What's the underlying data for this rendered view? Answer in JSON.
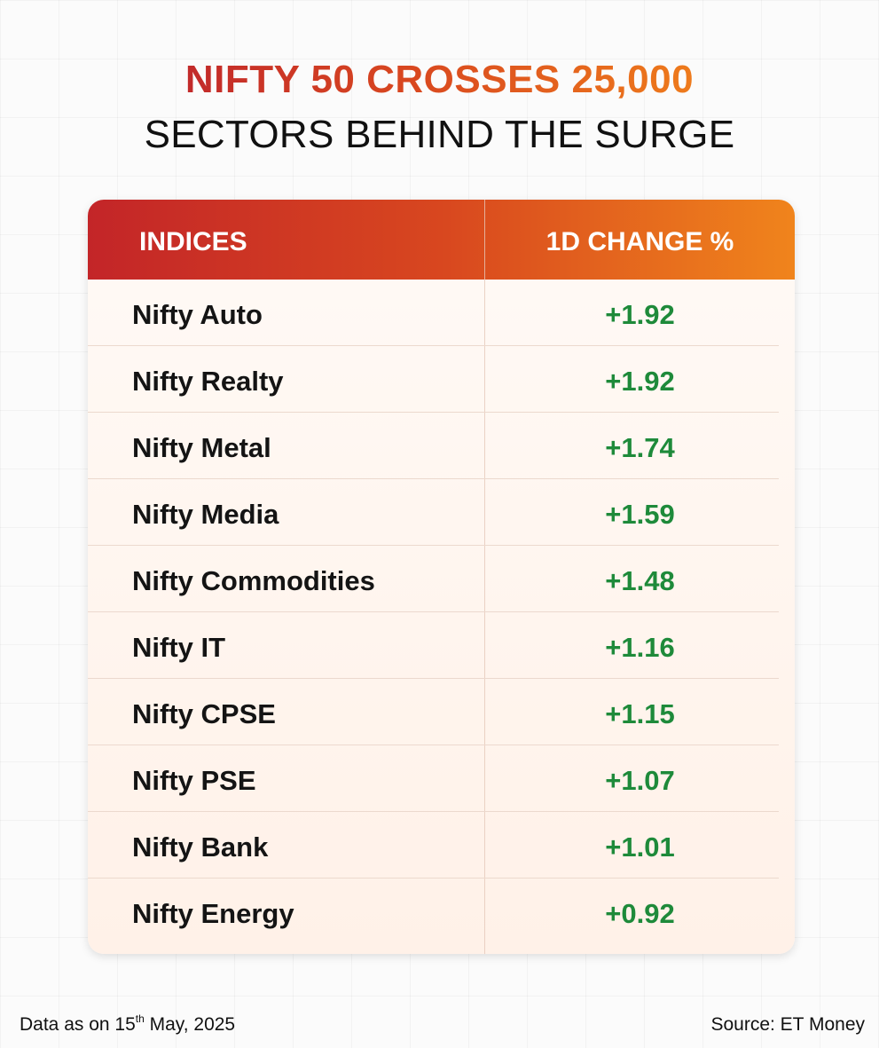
{
  "title": "NIFTY 50 CROSSES 25,000",
  "subtitle": "SECTORS BEHIND THE SURGE",
  "colors": {
    "title_gradient_start": "#c22a2a",
    "title_gradient_end": "#ee7b1c",
    "header_gradient_start": "#c32528",
    "header_gradient_end": "#f0841c",
    "positive_value": "#1e8a3a"
  },
  "chart_data": {
    "type": "table",
    "columns": [
      "INDICES",
      "1D CHANGE %"
    ],
    "rows": [
      {
        "index": "Nifty Auto",
        "change": "+1.92"
      },
      {
        "index": "Nifty Realty",
        "change": "+1.92"
      },
      {
        "index": "Nifty Metal",
        "change": "+1.74"
      },
      {
        "index": "Nifty Media",
        "change": "+1.59"
      },
      {
        "index": "Nifty Commodities",
        "change": "+1.48"
      },
      {
        "index": "Nifty IT",
        "change": "+1.16"
      },
      {
        "index": "Nifty CPSE",
        "change": "+1.15"
      },
      {
        "index": "Nifty PSE",
        "change": "+1.07"
      },
      {
        "index": "Nifty Bank",
        "change": "+1.01"
      },
      {
        "index": "Nifty Energy",
        "change": "+0.92"
      }
    ]
  },
  "footer": {
    "date_prefix": "Data as on 15",
    "date_suffix_sup": "th",
    "date_rest": " May, 2025",
    "source": "Source: ET Money"
  }
}
